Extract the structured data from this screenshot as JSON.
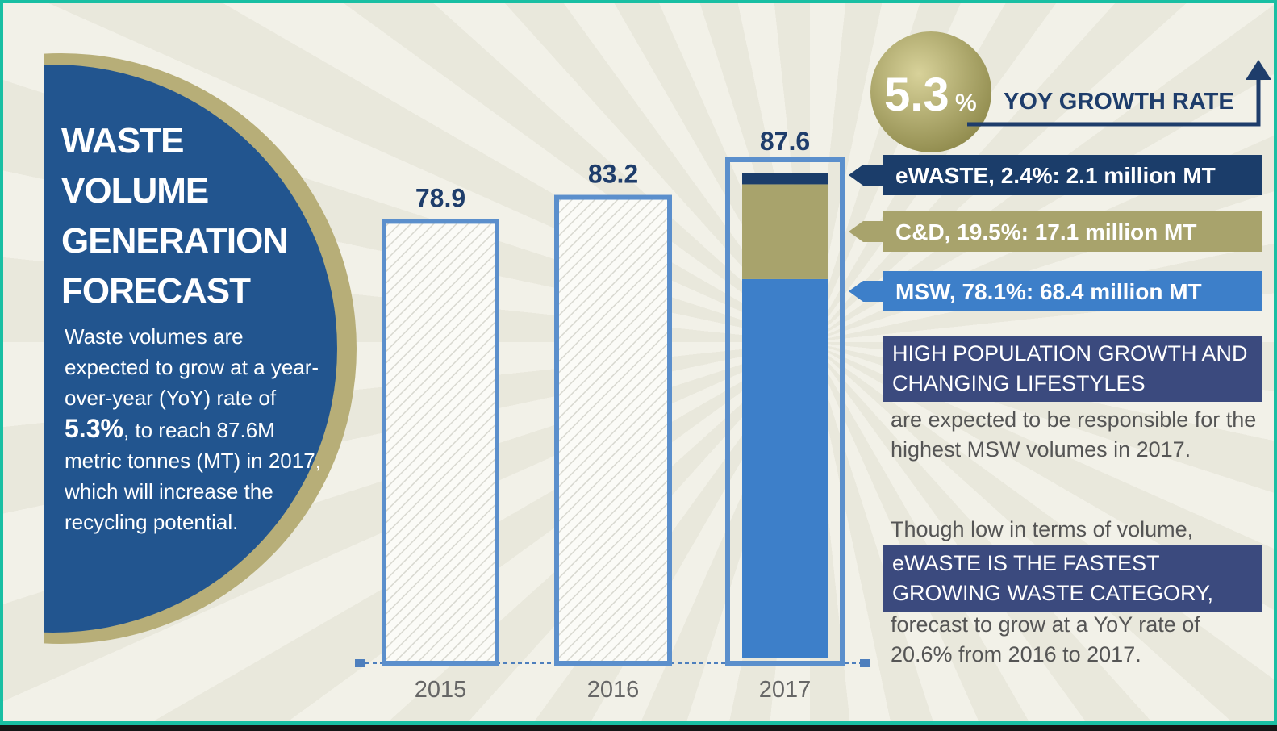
{
  "chart_data": {
    "type": "bar",
    "title": "WASTE VOLUME GENERATION FORECAST",
    "description": [
      "Waste volumes are expected to grow at a year-over-year (YoY) rate of ",
      "5.3%",
      ", to reach 87.6M metric tonnes (MT) in 2017, which will increase the recycling potential."
    ],
    "categories": [
      "2015",
      "2016",
      "2017"
    ],
    "values": [
      78.9,
      83.2,
      87.6
    ],
    "color": "#5b8fcc",
    "series": [
      {
        "name": "MSW, 78.1%: 68.4 million MT",
        "color": "#3d7fc9",
        "values": [
          null,
          null,
          68.4
        ]
      },
      {
        "name": "C&D, 19.5%: 17.1 million MT",
        "color": "#a8a36c",
        "values": [
          null,
          null,
          17.1
        ]
      },
      {
        "name": "eWASTE, 2.4%: 2.1 million MT",
        "color": "#1b3d6a",
        "values": [
          null,
          null,
          2.1
        ]
      }
    ],
    "annotations": {
      "growth_value": "5.3",
      "growth_unit": "%",
      "growth_label": "YOY GROWTH RATE"
    },
    "notes": [
      {
        "highlight": "HIGH POPULATION GROWTH AND CHANGING LIFESTYLES",
        "text": "are expected to be responsible for the highest MSW volumes in 2017."
      },
      {
        "intro": "Though low in terms of volume,",
        "highlight": "eWASTE IS THE FASTEST GROWING WASTE CATEGORY,",
        "text": "forecast to grow at a YoY rate of 20.6% from 2016 to 2017."
      }
    ]
  }
}
